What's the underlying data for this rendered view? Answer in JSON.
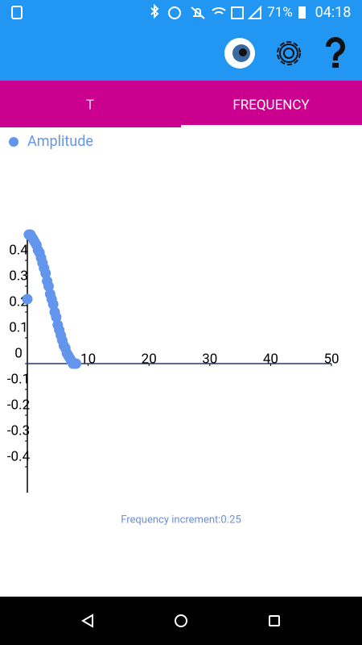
{
  "status_bar": {
    "battery": "71%",
    "time": "04:18"
  },
  "tabs": [
    "T",
    "FREQUENCY"
  ],
  "chart_data": {
    "type": "scatter",
    "x": [
      0,
      0.25,
      0.5,
      0.75,
      1,
      1.25,
      1.5,
      1.75,
      2,
      2.25,
      2.5,
      2.75,
      3,
      3.25,
      3.5,
      3.75,
      4,
      4.25,
      4.5,
      4.75,
      5,
      5.25,
      5.5,
      5.75,
      6,
      6.25,
      6.5,
      6.75,
      7,
      7.25,
      7.5,
      7.75,
      8
    ],
    "series": [
      {
        "name": "Amplitude",
        "color": "#6495ed",
        "values": [
          0.25,
          0.5,
          0.5,
          0.49,
          0.48,
          0.47,
          0.46,
          0.44,
          0.43,
          0.41,
          0.39,
          0.37,
          0.35,
          0.32,
          0.3,
          0.27,
          0.25,
          0.23,
          0.2,
          0.18,
          0.15,
          0.13,
          0.11,
          0.09,
          0.07,
          0.06,
          0.04,
          0.03,
          0.02,
          0.01,
          0,
          0,
          0
        ]
      }
    ],
    "xlim": [
      0,
      50
    ],
    "ylim": [
      -0.5,
      0.5
    ],
    "xticks": [
      10,
      20,
      30,
      40,
      50
    ],
    "yticks": [
      -0.4,
      -0.3,
      -0.2,
      -0.1,
      0,
      0.1,
      0.2,
      0.3,
      0.4
    ]
  },
  "footer": "Frequency increment:0.25"
}
